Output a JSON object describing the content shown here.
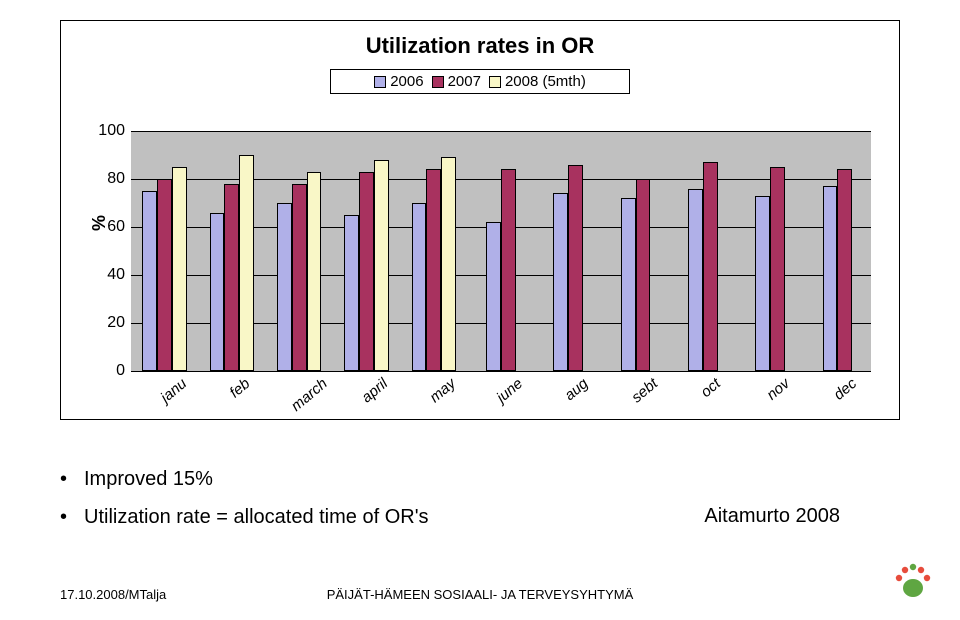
{
  "chart": {
    "type": "bar",
    "title": "Utilization rates in OR",
    "title_fontsize": 22,
    "ylabel": "%",
    "ylim": [
      0,
      100
    ],
    "ytick_step": 20,
    "background_color": "#c0c0c0",
    "grid_color": "#000000",
    "bar_border": "#000000",
    "categories": [
      "janu",
      "feb",
      "march",
      "april",
      "may",
      "june",
      "aug",
      "sebt",
      "oct",
      "nov",
      "dec"
    ],
    "series": [
      {
        "label": "2006",
        "color": "#b0b0e8",
        "values": [
          75,
          66,
          70,
          65,
          70,
          62,
          74,
          72,
          76,
          73,
          77
        ]
      },
      {
        "label": "2007",
        "color": "#a8325f",
        "values": [
          80,
          78,
          78,
          83,
          84,
          84,
          86,
          80,
          87,
          85,
          84
        ]
      },
      {
        "label": "2008 (5mth)",
        "color": "#f9f7c7",
        "values": [
          85,
          90,
          83,
          88,
          89,
          null,
          null,
          null,
          null,
          null,
          null
        ]
      }
    ],
    "bar_width": 0.22,
    "label_rotation": -40,
    "label_fontstyle": "italic"
  },
  "bullets": [
    "Improved 15%",
    "Utilization rate = allocated time of OR's"
  ],
  "citation": "Aitamurto 2008",
  "footer_left": "17.10.2008/MTalja",
  "footer_center": "PÄIJÄT-HÄMEEN SOSIAALI- JA TERVEYSYHTYMÄ",
  "logo": {
    "palm": "#5fa642",
    "fingers": [
      "#e74c3c",
      "#e74c3c",
      "#5fa642",
      "#e74c3c",
      "#e74c3c"
    ]
  }
}
